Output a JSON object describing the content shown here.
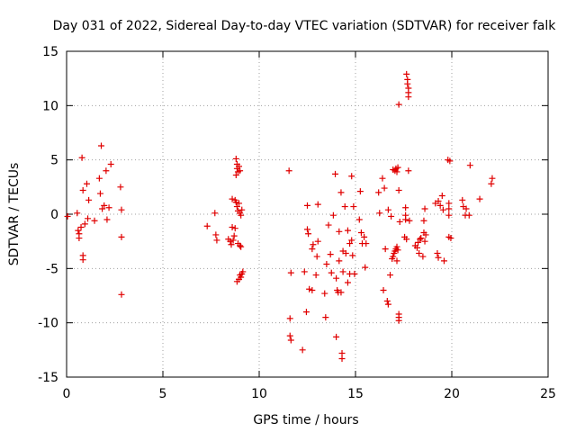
{
  "chart_data": {
    "type": "scatter",
    "title": "Day 031 of 2022, Sidereal Day-to-day VTEC variation (SDTVAR) for receiver falk",
    "xlabel": "GPS time / hours",
    "ylabel": "SDTVAR / TECUs",
    "xlim": [
      0,
      25
    ],
    "ylim": [
      -15,
      15
    ],
    "xticks": [
      0,
      5,
      10,
      15,
      20,
      25
    ],
    "yticks": [
      -15,
      -10,
      -5,
      0,
      5,
      10,
      15
    ],
    "grid": true,
    "marker": "+",
    "color": "#e00000",
    "series": [
      {
        "name": "SDTVAR",
        "points": [
          [
            0.05,
            -0.2
          ],
          [
            0.55,
            0.1
          ],
          [
            0.6,
            -1.5
          ],
          [
            0.65,
            -1.8
          ],
          [
            0.65,
            -2.2
          ],
          [
            0.75,
            -1.2
          ],
          [
            0.8,
            5.2
          ],
          [
            0.85,
            -3.8
          ],
          [
            0.85,
            -4.2
          ],
          [
            0.85,
            2.2
          ],
          [
            0.95,
            -0.9
          ],
          [
            1.05,
            2.8
          ],
          [
            1.1,
            -0.4
          ],
          [
            1.15,
            1.3
          ],
          [
            1.45,
            -0.6
          ],
          [
            1.7,
            3.3
          ],
          [
            1.75,
            1.9
          ],
          [
            1.8,
            6.3
          ],
          [
            1.85,
            0.5
          ],
          [
            1.95,
            0.8
          ],
          [
            2.05,
            4.0
          ],
          [
            2.1,
            -0.5
          ],
          [
            2.2,
            0.6
          ],
          [
            2.3,
            4.6
          ],
          [
            2.8,
            2.5
          ],
          [
            2.85,
            0.4
          ],
          [
            2.85,
            -2.1
          ],
          [
            2.85,
            -7.4
          ],
          [
            7.3,
            -1.1
          ],
          [
            7.7,
            0.1
          ],
          [
            7.75,
            -1.9
          ],
          [
            7.8,
            -2.4
          ],
          [
            8.4,
            -2.3
          ],
          [
            8.5,
            -2.5
          ],
          [
            8.55,
            -2.8
          ],
          [
            8.6,
            1.4
          ],
          [
            8.6,
            -1.2
          ],
          [
            8.65,
            -2.4
          ],
          [
            8.7,
            -2.0
          ],
          [
            8.75,
            1.3
          ],
          [
            8.75,
            -1.3
          ],
          [
            8.8,
            1.1
          ],
          [
            8.8,
            3.6
          ],
          [
            8.8,
            5.1
          ],
          [
            8.85,
            4.6
          ],
          [
            8.85,
            4.2
          ],
          [
            8.85,
            0.7
          ],
          [
            8.85,
            -6.2
          ],
          [
            8.9,
            -2.7
          ],
          [
            8.9,
            3.9
          ],
          [
            8.9,
            0.3
          ],
          [
            8.95,
            4.4
          ],
          [
            8.95,
            -6.0
          ],
          [
            8.95,
            1.0
          ],
          [
            9.0,
            0.1
          ],
          [
            9.0,
            -2.9
          ],
          [
            9.0,
            -5.6
          ],
          [
            9.0,
            4.0
          ],
          [
            9.05,
            -5.8
          ],
          [
            9.05,
            -3.0
          ],
          [
            9.05,
            -0.1
          ],
          [
            9.1,
            -5.5
          ],
          [
            9.1,
            0.4
          ],
          [
            9.15,
            -5.3
          ],
          [
            11.55,
            4.0
          ],
          [
            11.6,
            -9.6
          ],
          [
            11.6,
            -11.2
          ],
          [
            11.65,
            -11.6
          ],
          [
            11.65,
            -5.4
          ],
          [
            12.25,
            -12.5
          ],
          [
            12.35,
            -5.3
          ],
          [
            12.45,
            -9.0
          ],
          [
            12.5,
            0.8
          ],
          [
            12.5,
            -1.4
          ],
          [
            12.55,
            -1.8
          ],
          [
            12.6,
            -6.9
          ],
          [
            12.75,
            -7.0
          ],
          [
            12.75,
            -3.2
          ],
          [
            12.8,
            -2.8
          ],
          [
            12.95,
            -5.6
          ],
          [
            13.0,
            -3.9
          ],
          [
            13.05,
            0.9
          ],
          [
            13.05,
            -2.5
          ],
          [
            13.4,
            -7.3
          ],
          [
            13.45,
            -9.5
          ],
          [
            13.5,
            -4.6
          ],
          [
            13.6,
            -1.0
          ],
          [
            13.7,
            -3.7
          ],
          [
            13.75,
            -5.4
          ],
          [
            13.85,
            -0.1
          ],
          [
            13.95,
            3.7
          ],
          [
            14.0,
            -11.3
          ],
          [
            14.0,
            -5.9
          ],
          [
            14.05,
            -7.0
          ],
          [
            14.1,
            -7.2
          ],
          [
            14.15,
            -4.3
          ],
          [
            14.15,
            -1.6
          ],
          [
            14.25,
            2.0
          ],
          [
            14.25,
            -7.2
          ],
          [
            14.3,
            -13.3
          ],
          [
            14.3,
            -12.8
          ],
          [
            14.35,
            -3.4
          ],
          [
            14.35,
            -5.3
          ],
          [
            14.45,
            0.7
          ],
          [
            14.5,
            -3.6
          ],
          [
            14.6,
            -1.5
          ],
          [
            14.6,
            -6.3
          ],
          [
            14.7,
            -5.5
          ],
          [
            14.7,
            -2.7
          ],
          [
            14.8,
            -2.4
          ],
          [
            14.8,
            3.5
          ],
          [
            14.85,
            -3.8
          ],
          [
            14.9,
            0.7
          ],
          [
            14.95,
            -5.5
          ],
          [
            15.2,
            -0.5
          ],
          [
            15.25,
            2.1
          ],
          [
            15.3,
            -1.7
          ],
          [
            15.35,
            -2.7
          ],
          [
            15.45,
            -2.1
          ],
          [
            15.5,
            -4.9
          ],
          [
            15.55,
            -2.7
          ],
          [
            16.2,
            2.0
          ],
          [
            16.25,
            0.1
          ],
          [
            16.4,
            3.3
          ],
          [
            16.45,
            -7.0
          ],
          [
            16.5,
            2.4
          ],
          [
            16.55,
            -3.2
          ],
          [
            16.65,
            -8.0
          ],
          [
            16.7,
            0.4
          ],
          [
            16.7,
            -8.3
          ],
          [
            16.8,
            -5.6
          ],
          [
            16.85,
            -0.2
          ],
          [
            16.9,
            -4.1
          ],
          [
            16.95,
            -3.9
          ],
          [
            16.95,
            4.1
          ],
          [
            17.0,
            -3.6
          ],
          [
            17.05,
            -3.4
          ],
          [
            17.05,
            4.0
          ],
          [
            17.1,
            4.2
          ],
          [
            17.1,
            -3.2
          ],
          [
            17.15,
            -3.0
          ],
          [
            17.15,
            -4.3
          ],
          [
            17.15,
            3.9
          ],
          [
            17.2,
            4.3
          ],
          [
            17.2,
            -3.3
          ],
          [
            17.25,
            10.1
          ],
          [
            17.25,
            -9.2
          ],
          [
            17.25,
            -9.5
          ],
          [
            17.25,
            -9.8
          ],
          [
            17.25,
            2.2
          ],
          [
            17.3,
            -0.7
          ],
          [
            17.55,
            -2.1
          ],
          [
            17.6,
            -0.1
          ],
          [
            17.6,
            0.6
          ],
          [
            17.6,
            -0.5
          ],
          [
            17.65,
            -2.3
          ],
          [
            17.65,
            12.9
          ],
          [
            17.7,
            12.4
          ],
          [
            17.7,
            12.0
          ],
          [
            17.75,
            11.6
          ],
          [
            17.75,
            11.2
          ],
          [
            17.75,
            10.8
          ],
          [
            17.75,
            4.0
          ],
          [
            17.8,
            -0.6
          ],
          [
            18.1,
            -2.9
          ],
          [
            18.2,
            -3.1
          ],
          [
            18.25,
            -2.6
          ],
          [
            18.3,
            -3.6
          ],
          [
            18.35,
            -2.3
          ],
          [
            18.4,
            -2.2
          ],
          [
            18.5,
            -3.9
          ],
          [
            18.55,
            -1.7
          ],
          [
            18.55,
            -0.6
          ],
          [
            18.6,
            -2.5
          ],
          [
            18.6,
            0.5
          ],
          [
            18.65,
            -1.9
          ],
          [
            19.15,
            1.0
          ],
          [
            19.25,
            -3.6
          ],
          [
            19.3,
            -4.0
          ],
          [
            19.3,
            1.2
          ],
          [
            19.4,
            0.8
          ],
          [
            19.5,
            1.7
          ],
          [
            19.55,
            0.4
          ],
          [
            19.6,
            -4.3
          ],
          [
            19.8,
            5.0
          ],
          [
            19.85,
            1.0
          ],
          [
            19.85,
            0.5
          ],
          [
            19.85,
            -0.1
          ],
          [
            19.85,
            -2.1
          ],
          [
            19.9,
            4.9
          ],
          [
            19.95,
            -2.2
          ],
          [
            20.55,
            1.3
          ],
          [
            20.6,
            0.7
          ],
          [
            20.7,
            -0.1
          ],
          [
            20.75,
            0.5
          ],
          [
            20.9,
            -0.1
          ],
          [
            20.95,
            4.5
          ],
          [
            21.45,
            1.4
          ],
          [
            22.05,
            2.8
          ],
          [
            22.1,
            3.3
          ]
        ]
      }
    ]
  }
}
